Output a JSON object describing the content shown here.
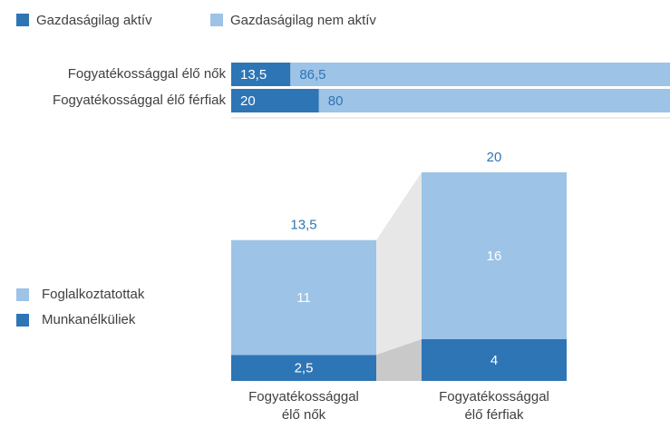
{
  "chart_data": [
    {
      "type": "hbar-stacked",
      "categories": [
        "Fogyatékossággal élő nők",
        "Fogyatékossággal élő férfiak"
      ],
      "series": [
        {
          "name": "Gazdaságilag aktív",
          "color": "#2e75b6",
          "values": [
            13.5,
            20
          ],
          "value_labels": [
            "13,5",
            "20"
          ]
        },
        {
          "name": "Gazdaságilag nem aktív",
          "color": "#9dc3e6",
          "values": [
            86.5,
            80
          ],
          "value_labels": [
            "86,5",
            "80"
          ]
        }
      ],
      "xlim": [
        0,
        100
      ]
    },
    {
      "type": "bar-stacked",
      "categories": [
        "Fogyatékossággal élő nők",
        "Fogyatékossággal élő férfiak"
      ],
      "series": [
        {
          "name": "Munkanélküliek",
          "color": "#2e75b6",
          "values": [
            2.5,
            4
          ],
          "value_labels": [
            "2,5",
            "4"
          ]
        },
        {
          "name": "Foglalkoztatottak",
          "color": "#9dc3e6",
          "values": [
            11,
            16
          ]
        }
      ],
      "totals": [
        13.5,
        20
      ],
      "total_labels": [
        "13,5",
        "20"
      ],
      "ylim": [
        0,
        20
      ]
    }
  ]
}
